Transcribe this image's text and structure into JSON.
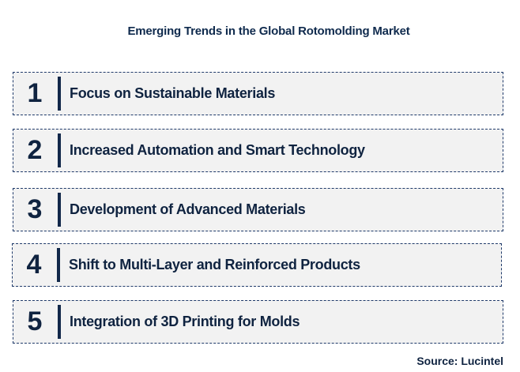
{
  "title": "Emerging Trends in the Global Rotomolding Market",
  "trends": [
    {
      "number": "1",
      "label": "Focus on Sustainable Materials"
    },
    {
      "number": "2",
      "label": "Increased Automation and Smart Technology"
    },
    {
      "number": "3",
      "label": "Development of Advanced Materials"
    },
    {
      "number": "4",
      "label": "Shift to Multi-Layer and Reinforced Products"
    },
    {
      "number": "5",
      "label": "Integration of 3D Printing for Molds"
    }
  ],
  "source": "Source: Lucintel"
}
